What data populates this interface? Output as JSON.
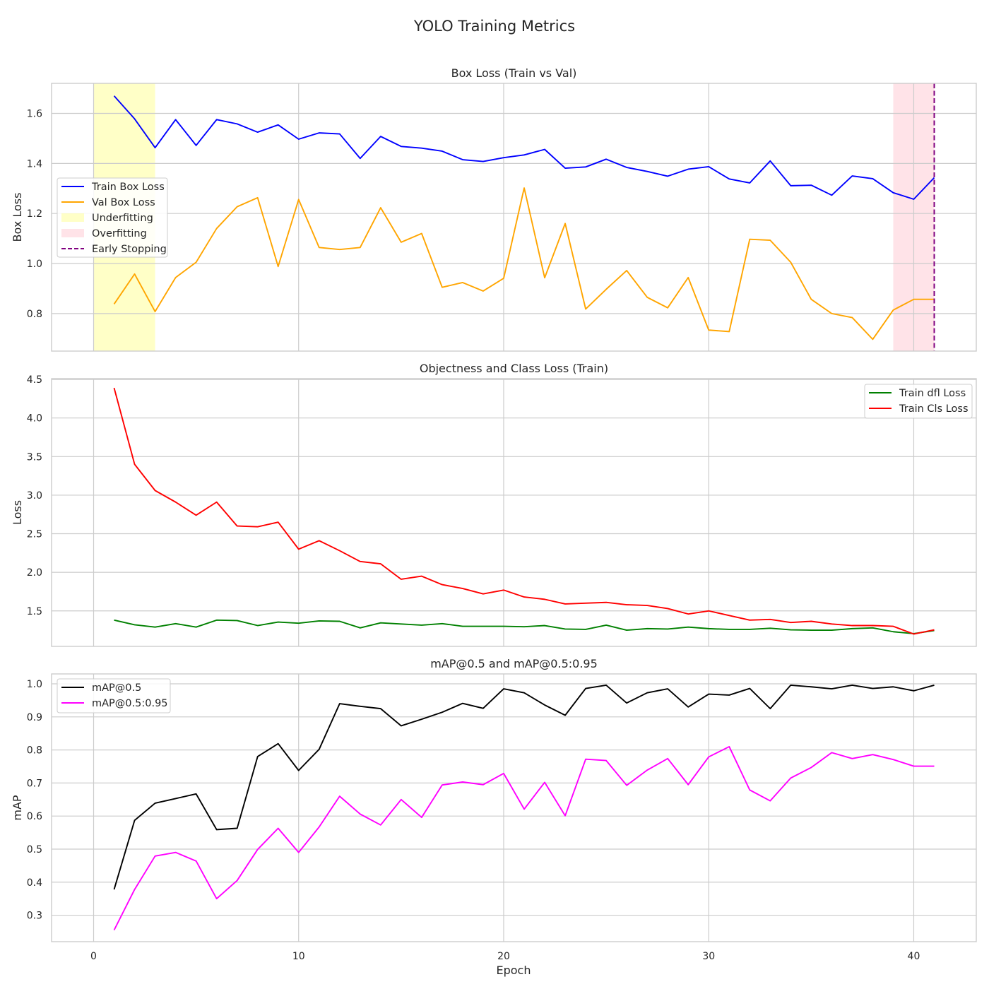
{
  "figure": {
    "suptitle": "YOLO Training Metrics",
    "xlabel": "Epoch"
  },
  "chart_data": [
    {
      "type": "line",
      "title": "Box Loss (Train vs Val)",
      "xlabel": "",
      "ylabel": "Box Loss",
      "xlim": [
        -2.05,
        43.05
      ],
      "ylim": [
        0.65,
        1.72
      ],
      "xticks": [
        0,
        10,
        20,
        30,
        40
      ],
      "yticks": [
        0.8,
        1.0,
        1.2,
        1.4,
        1.6
      ],
      "ytick_labels": [
        "0.8",
        "1.0",
        "1.2",
        "1.4",
        "1.6"
      ],
      "x": [
        1,
        2,
        3,
        4,
        5,
        6,
        7,
        8,
        9,
        10,
        11,
        12,
        13,
        14,
        15,
        16,
        17,
        18,
        19,
        20,
        21,
        22,
        23,
        24,
        25,
        26,
        27,
        28,
        29,
        30,
        31,
        32,
        33,
        34,
        35,
        36,
        37,
        38,
        39,
        40,
        41
      ],
      "series": [
        {
          "name": "Train Box Loss",
          "color": "#0000ff",
          "values": [
            1.67,
            1.578,
            1.463,
            1.575,
            1.472,
            1.575,
            1.558,
            1.525,
            1.554,
            1.497,
            1.522,
            1.518,
            1.42,
            1.508,
            1.468,
            1.461,
            1.449,
            1.415,
            1.408,
            1.423,
            1.434,
            1.456,
            1.381,
            1.386,
            1.417,
            1.384,
            1.368,
            1.349,
            1.377,
            1.387,
            1.338,
            1.322,
            1.41,
            1.311,
            1.313,
            1.273,
            1.35,
            1.339,
            1.283,
            1.257,
            1.343
          ]
        },
        {
          "name": "Val Box Loss",
          "color": "#ffa500",
          "values": [
            0.838,
            0.958,
            0.808,
            0.944,
            1.005,
            1.14,
            1.227,
            1.263,
            0.988,
            1.256,
            1.064,
            1.056,
            1.064,
            1.223,
            1.085,
            1.12,
            0.905,
            0.924,
            0.89,
            0.941,
            1.302,
            0.943,
            1.16,
            0.818,
            0.897,
            0.972,
            0.865,
            0.823,
            0.944,
            0.734,
            0.728,
            1.097,
            1.093,
            1.005,
            0.857,
            0.8,
            0.784,
            0.697,
            0.814,
            0.857,
            0.857
          ]
        }
      ],
      "regions": [
        {
          "name": "Underfitting",
          "x": [
            0,
            3
          ],
          "color": "#ffff99"
        },
        {
          "name": "Overfitting",
          "x": [
            39,
            41
          ],
          "color": "#ffc0cb"
        }
      ],
      "vlines": [
        {
          "name": "Early Stopping",
          "x": 41,
          "color": "#800080",
          "style": "dashed"
        }
      ],
      "legend_order": [
        "Train Box Loss",
        "Val Box Loss",
        "Underfitting",
        "Overfitting",
        "Early Stopping"
      ],
      "legend": "center-left",
      "grid": true
    },
    {
      "type": "line",
      "title": "Objectness and Class Loss (Train)",
      "xlabel": "",
      "ylabel": "Loss",
      "xlim": [
        -2.05,
        43.05
      ],
      "ylim": [
        1.04,
        4.51
      ],
      "xticks": [
        0,
        10,
        20,
        30,
        40
      ],
      "yticks": [
        1.5,
        2.0,
        2.5,
        3.0,
        3.5,
        4.0,
        4.5
      ],
      "ytick_labels": [
        "1.5",
        "2.0",
        "2.5",
        "3.0",
        "3.5",
        "4.0",
        "4.5"
      ],
      "x": [
        1,
        2,
        3,
        4,
        5,
        6,
        7,
        8,
        9,
        10,
        11,
        12,
        13,
        14,
        15,
        16,
        17,
        18,
        19,
        20,
        21,
        22,
        23,
        24,
        25,
        26,
        27,
        28,
        29,
        30,
        31,
        32,
        33,
        34,
        35,
        36,
        37,
        38,
        39,
        40,
        41
      ],
      "series": [
        {
          "name": "Train dfl Loss",
          "color": "#008000",
          "values": [
            1.38,
            1.32,
            1.29,
            1.335,
            1.29,
            1.38,
            1.375,
            1.31,
            1.355,
            1.34,
            1.37,
            1.365,
            1.28,
            1.345,
            1.33,
            1.315,
            1.335,
            1.3,
            1.3,
            1.3,
            1.295,
            1.31,
            1.265,
            1.26,
            1.315,
            1.25,
            1.27,
            1.265,
            1.29,
            1.27,
            1.26,
            1.26,
            1.275,
            1.255,
            1.25,
            1.25,
            1.27,
            1.28,
            1.23,
            1.205,
            1.245
          ]
        },
        {
          "name": "Train Cls Loss",
          "color": "#ff0000",
          "values": [
            4.39,
            3.4,
            3.06,
            2.91,
            2.74,
            2.91,
            2.6,
            2.59,
            2.65,
            2.3,
            2.41,
            2.28,
            2.14,
            2.11,
            1.91,
            1.95,
            1.84,
            1.79,
            1.72,
            1.77,
            1.68,
            1.65,
            1.59,
            1.6,
            1.61,
            1.58,
            1.57,
            1.53,
            1.46,
            1.5,
            1.44,
            1.38,
            1.39,
            1.35,
            1.365,
            1.33,
            1.31,
            1.31,
            1.3,
            1.2,
            1.255
          ]
        }
      ],
      "legend_order": [
        "Train dfl Loss",
        "Train Cls Loss"
      ],
      "legend": "top-right",
      "grid": true
    },
    {
      "type": "line",
      "title": "mAP@0.5 and mAP@0.5:0.95",
      "xlabel": "Epoch",
      "ylabel": "mAP",
      "xlim": [
        -2.05,
        43.05
      ],
      "ylim": [
        0.22,
        1.03
      ],
      "xticks": [
        0,
        10,
        20,
        30,
        40
      ],
      "xtick_labels": [
        "0",
        "10",
        "20",
        "30",
        "40"
      ],
      "yticks": [
        0.3,
        0.4,
        0.5,
        0.6,
        0.7,
        0.8,
        0.9,
        1.0
      ],
      "ytick_labels": [
        "0.3",
        "0.4",
        "0.5",
        "0.6",
        "0.7",
        "0.8",
        "0.9",
        "1.0"
      ],
      "x": [
        1,
        2,
        3,
        4,
        5,
        6,
        7,
        8,
        9,
        10,
        11,
        12,
        13,
        14,
        15,
        16,
        17,
        18,
        19,
        20,
        21,
        22,
        23,
        24,
        25,
        26,
        27,
        28,
        29,
        30,
        31,
        32,
        33,
        34,
        35,
        36,
        37,
        38,
        39,
        40,
        41
      ],
      "series": [
        {
          "name": "mAP@0.5",
          "color": "#000000",
          "values": [
            0.378,
            0.587,
            0.639,
            0.653,
            0.667,
            0.559,
            0.563,
            0.78,
            0.819,
            0.738,
            0.802,
            0.94,
            0.932,
            0.925,
            0.873,
            0.893,
            0.914,
            0.941,
            0.926,
            0.985,
            0.973,
            0.936,
            0.905,
            0.986,
            0.996,
            0.942,
            0.973,
            0.985,
            0.93,
            0.969,
            0.966,
            0.986,
            0.925,
            0.996,
            0.991,
            0.985,
            0.996,
            0.986,
            0.991,
            0.979,
            0.996
          ]
        },
        {
          "name": "mAP@0.5:0.95",
          "color": "#ff00ff",
          "values": [
            0.255,
            0.378,
            0.479,
            0.49,
            0.464,
            0.35,
            0.405,
            0.499,
            0.563,
            0.49,
            0.567,
            0.66,
            0.606,
            0.573,
            0.65,
            0.596,
            0.694,
            0.703,
            0.695,
            0.729,
            0.621,
            0.702,
            0.601,
            0.772,
            0.768,
            0.693,
            0.739,
            0.774,
            0.695,
            0.779,
            0.81,
            0.679,
            0.646,
            0.715,
            0.747,
            0.792,
            0.774,
            0.786,
            0.771,
            0.751,
            0.751
          ]
        }
      ],
      "legend_order": [
        "mAP@0.5",
        "mAP@0.5:0.95"
      ],
      "legend": "top-left",
      "grid": true
    }
  ]
}
